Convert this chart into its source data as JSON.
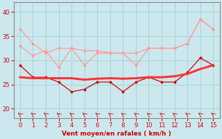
{
  "x": [
    0,
    1,
    2,
    3,
    4,
    5,
    6,
    7,
    8,
    9,
    10,
    11,
    12,
    13,
    14,
    15
  ],
  "line_rafales_upper": [
    36.5,
    33.5,
    31.5,
    32.5,
    32.5,
    32.0,
    32.0,
    31.5,
    31.5,
    31.5,
    32.5,
    32.5,
    32.5,
    33.5,
    38.5,
    36.5
  ],
  "line_rafales_lower": [
    33.0,
    31.0,
    32.0,
    28.5,
    32.5,
    29.0,
    31.5,
    31.5,
    31.5,
    29.0,
    32.5,
    32.5,
    32.5,
    33.5,
    38.5,
    36.5
  ],
  "line_vent_jagged": [
    29.0,
    26.5,
    26.5,
    25.5,
    23.5,
    24.0,
    25.5,
    25.5,
    23.5,
    25.5,
    26.5,
    25.5,
    25.5,
    27.5,
    30.5,
    29.0
  ],
  "line_vent_smooth": [
    26.5,
    26.3,
    26.3,
    26.3,
    26.3,
    26.0,
    26.2,
    26.3,
    26.2,
    26.3,
    26.5,
    26.5,
    26.7,
    27.2,
    28.2,
    29.0
  ],
  "xlabel": "Vent moyen/en rafales ( km/h )",
  "ylim": [
    18,
    42
  ],
  "xlim": [
    -0.5,
    15.5
  ],
  "yticks": [
    20,
    25,
    30,
    35,
    40
  ],
  "xticks": [
    0,
    1,
    2,
    3,
    4,
    5,
    6,
    7,
    8,
    9,
    10,
    11,
    12,
    13,
    14,
    15
  ],
  "bg_color": "#cce8ee",
  "grid_color": "#aad4da",
  "color_rafales": "#ff9999",
  "color_vent_dark": "#cc0000",
  "color_vent_medium": "#ff3333",
  "color_label": "#cc0000",
  "color_axis": "#888888",
  "color_tick": "#cc0000"
}
